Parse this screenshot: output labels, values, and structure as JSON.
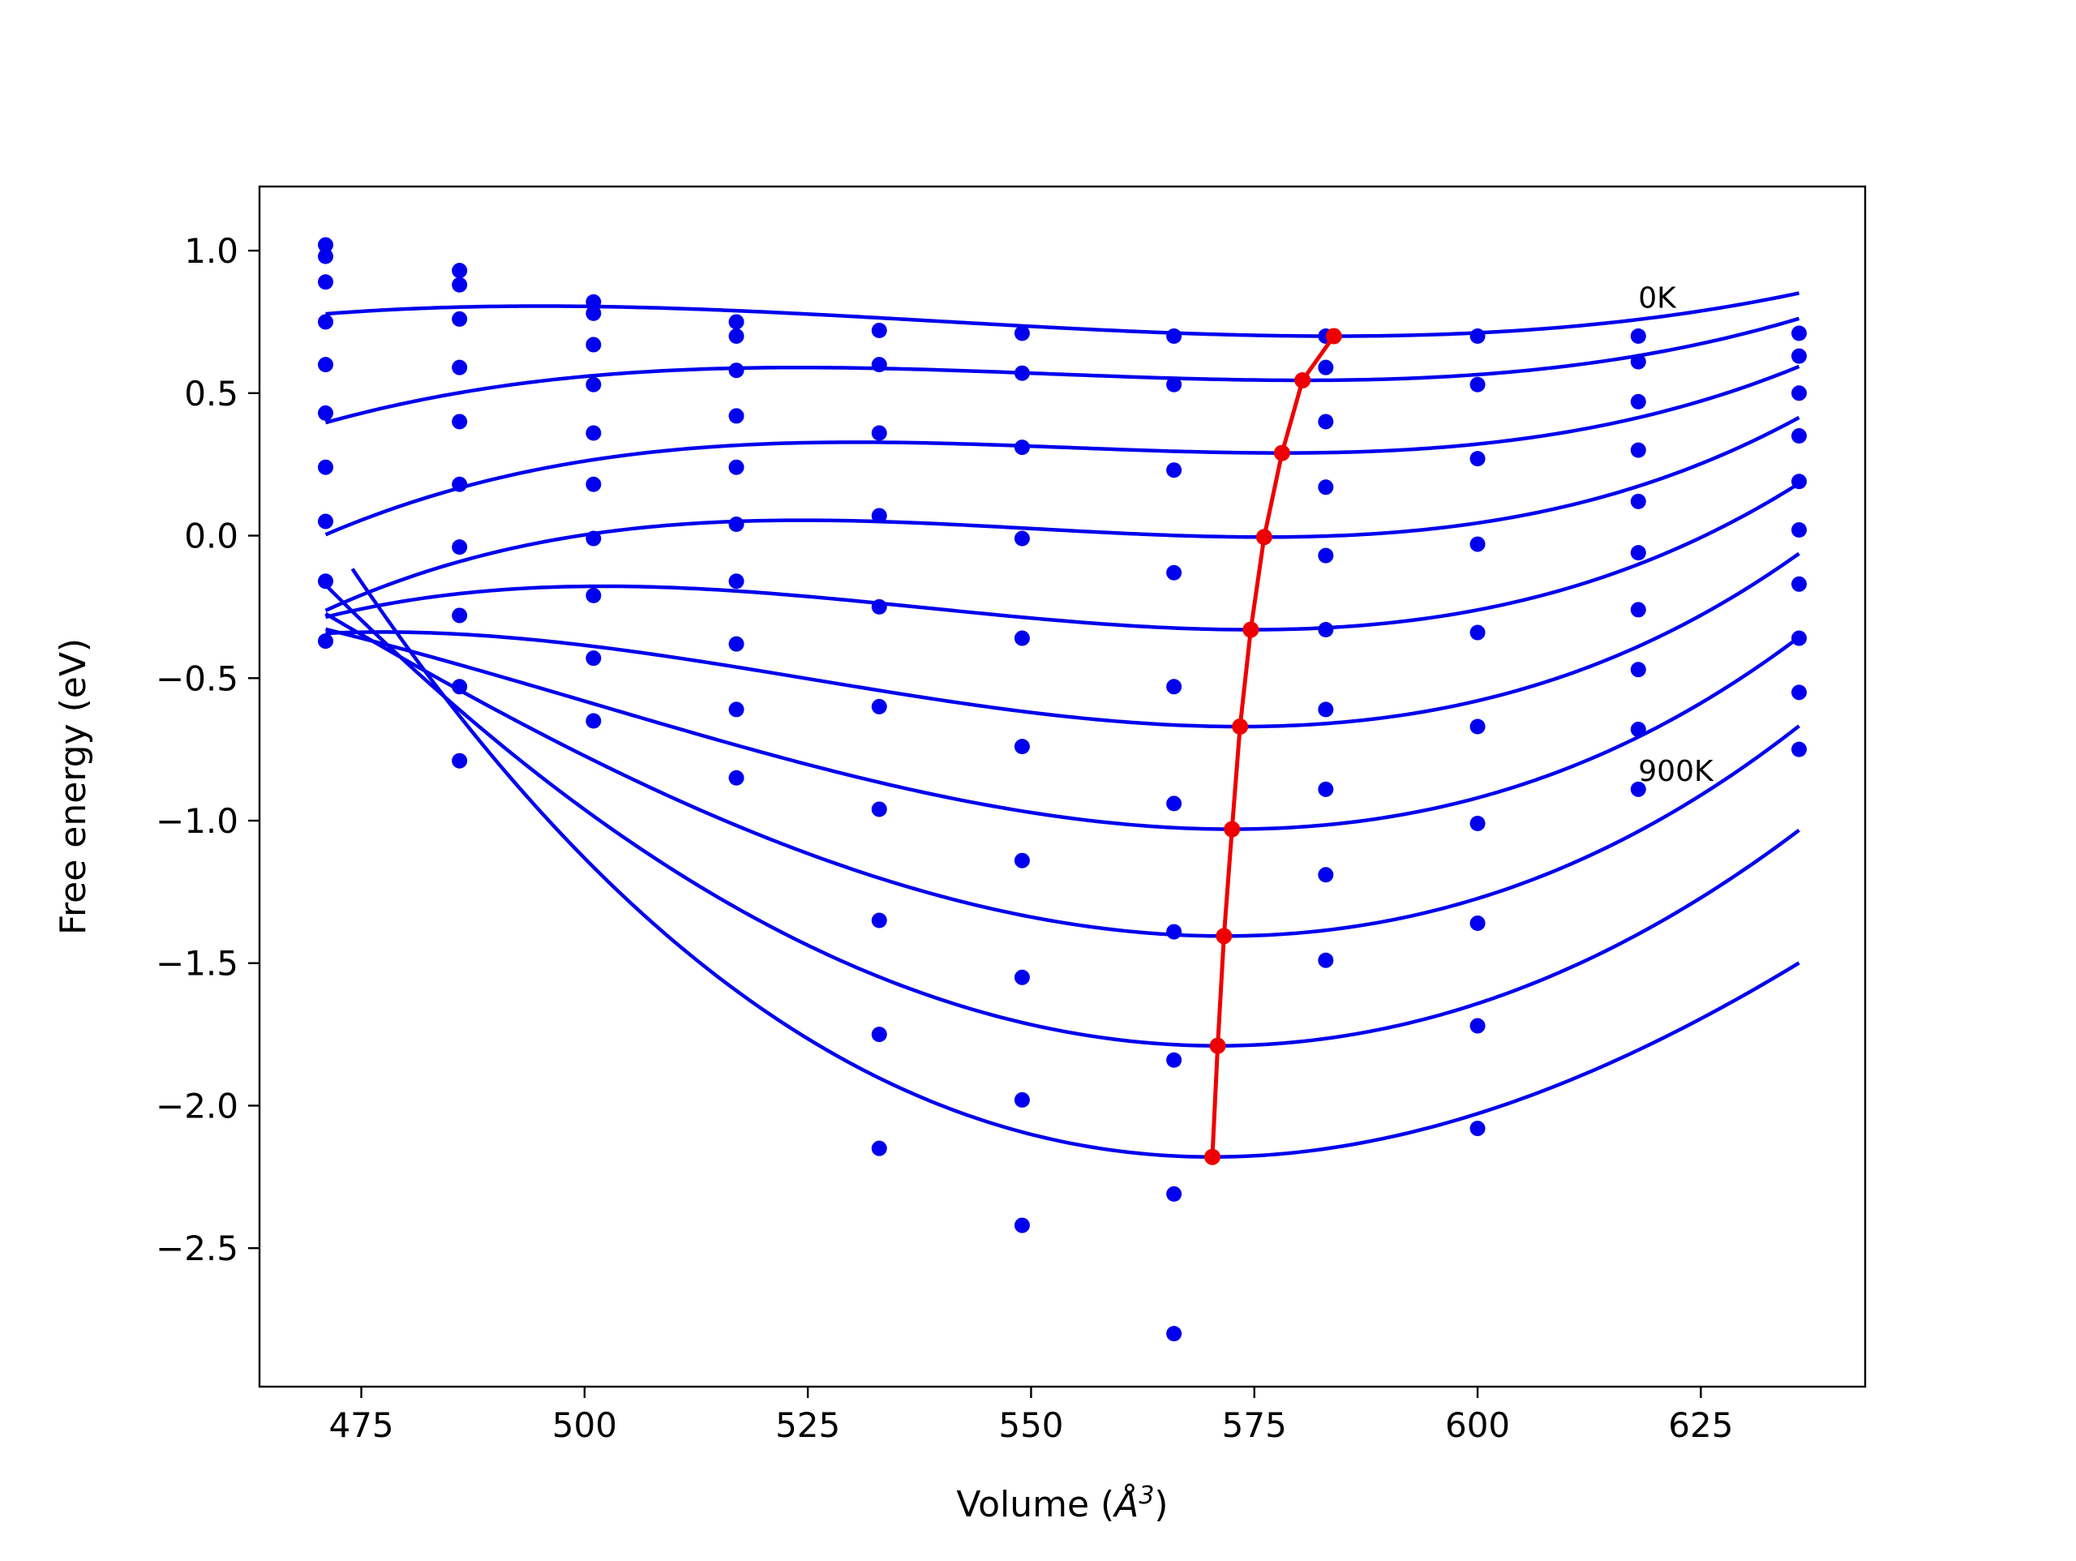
{
  "chart_data": {
    "type": "line",
    "title": "",
    "xlabel": "Volume (",
    "xlabel_math": "Å",
    "xlabel_sup": "3",
    "xlabel_close": ")",
    "ylabel": "Free energy (eV)",
    "xlim": [
      463.6,
      643.4
    ],
    "ylim": [
      -2.986,
      1.225
    ],
    "x_ticks": [
      475,
      500,
      525,
      550,
      575,
      600,
      625
    ],
    "x_tick_labels": [
      "475",
      "500",
      "525",
      "550",
      "575",
      "600",
      "625"
    ],
    "y_ticks": [
      1.0,
      0.5,
      0.0,
      -0.5,
      -1.0,
      -1.5,
      -2.0,
      -2.5
    ],
    "y_tick_labels": [
      "1.0",
      "0.5",
      "0.0",
      "−0.5",
      "−1.0",
      "−1.5",
      "−2.0",
      "−2.5"
    ],
    "grid": false,
    "annotations": [
      {
        "text": "0K",
        "x": 618.0,
        "y": 0.8
      },
      {
        "text": "900K",
        "x": 618.0,
        "y": -0.86
      }
    ],
    "volumes": [
      471.0,
      486.0,
      501.0,
      517.0,
      533.0,
      549.0,
      566.0,
      583.0,
      600.0,
      618.0,
      636.0
    ],
    "curves": [
      {
        "v0": 583.9,
        "e0": 0.7,
        "a": 4e-05,
        "b": 3e-07,
        "x_start": 471.0
      },
      {
        "v0": 580.4,
        "e0": 0.545,
        "a": 4.23e-05,
        "b": 5e-07,
        "x_start": 471.0
      },
      {
        "v0": 578.1,
        "e0": 0.29,
        "a": 5e-05,
        "b": 7e-07,
        "x_start": 471.0
      },
      {
        "v0": 576.1,
        "e0": -0.005,
        "a": 6.6e-05,
        "b": 8.5e-07,
        "x_start": 471.0
      },
      {
        "v0": 574.6,
        "e0": -0.33,
        "a": 8.7e-05,
        "b": 8e-07,
        "x_start": 471.0
      },
      {
        "v0": 573.4,
        "e0": -0.67,
        "a": 0.000108,
        "b": 7.5e-07,
        "x_start": 471.0
      },
      {
        "v0": 572.5,
        "e0": -1.03,
        "a": 0.000129,
        "b": 6e-07,
        "x_start": 471.0
      },
      {
        "v0": 571.6,
        "e0": -1.405,
        "a": 0.000152,
        "b": 4e-07,
        "x_start": 471.0
      },
      {
        "v0": 570.9,
        "e0": -1.79,
        "a": 0.000172,
        "b": 1e-07,
        "x_start": 471.0
      },
      {
        "v0": 570.3,
        "e0": -2.18,
        "a": 0.000184,
        "b": -4e-07,
        "x_start": 474.0
      }
    ],
    "scatter_points": [
      [
        1.02,
        0.93,
        0.82,
        0.75,
        0.72,
        0.71,
        0.7,
        0.7,
        0.7,
        0.7,
        0.71
      ],
      [
        0.98,
        0.88,
        0.78,
        0.7,
        null,
        null,
        null,
        null,
        null,
        null,
        null
      ],
      [
        0.89,
        0.76,
        0.67,
        0.58,
        0.6,
        0.57,
        0.53,
        0.59,
        0.53,
        0.61,
        0.63
      ],
      [
        0.75,
        0.59,
        0.53,
        0.42,
        0.36,
        0.31,
        0.23,
        0.4,
        0.27,
        0.47,
        0.5
      ],
      [
        0.6,
        0.4,
        0.36,
        0.24,
        0.07,
        -0.01,
        -0.13,
        0.17,
        -0.03,
        0.3,
        0.35
      ],
      [
        0.43,
        0.18,
        0.18,
        0.04,
        -0.25,
        -0.36,
        -0.53,
        -0.07,
        -0.34,
        0.12,
        0.19
      ],
      [
        0.24,
        -0.04,
        -0.01,
        -0.16,
        -0.6,
        -0.74,
        -0.94,
        -0.33,
        -0.67,
        -0.06,
        0.02
      ],
      [
        0.05,
        -0.28,
        -0.21,
        -0.38,
        -0.96,
        -1.14,
        -1.39,
        -0.61,
        -1.01,
        -0.26,
        -0.17
      ],
      [
        -0.16,
        -0.53,
        -0.43,
        -0.61,
        -1.35,
        -1.55,
        -1.84,
        -0.89,
        -1.36,
        -0.47,
        -0.36
      ],
      [
        -0.37,
        -0.79,
        -0.65,
        -0.85,
        -1.75,
        -1.98,
        -2.31,
        -1.19,
        -1.72,
        -0.68,
        -0.55
      ],
      [
        null,
        null,
        null,
        null,
        -2.15,
        -2.42,
        -2.8,
        -1.49,
        -2.08,
        -0.89,
        -0.75
      ]
    ],
    "equilibrium_series": {
      "x": [
        583.9,
        580.4,
        578.1,
        576.1,
        574.6,
        573.4,
        572.5,
        571.6,
        570.9,
        570.3
      ],
      "y": [
        0.7,
        0.545,
        0.29,
        -0.005,
        -0.33,
        -0.67,
        -1.03,
        -1.405,
        -1.79,
        -2.18
      ]
    },
    "colors": {
      "curves": "#0000ee",
      "points": "#0000ee",
      "equilibrium": "#ee0000",
      "axes": "#000000"
    }
  }
}
